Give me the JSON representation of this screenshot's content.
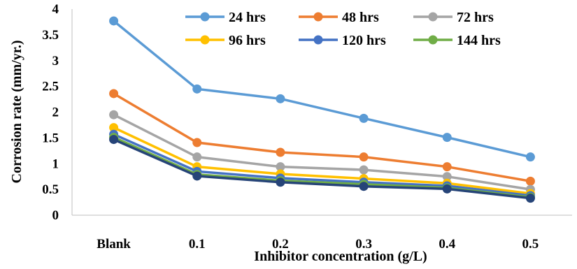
{
  "chart_data": {
    "type": "line",
    "title": "",
    "xlabel": "Inhibitor concentration (g/L)",
    "ylabel": "Corrosion rate (mm/yr.)",
    "categories": [
      "Blank",
      "0.1",
      "0.2",
      "0.3",
      "0.4",
      "0.5"
    ],
    "ylim": [
      0,
      4
    ],
    "yticks": [
      "0",
      "0.5",
      "1",
      "1.5",
      "2",
      "2.5",
      "3",
      "3.5",
      "4"
    ],
    "grid": false,
    "legend_position": "top-right",
    "series": [
      {
        "name": "24 hrs",
        "color": "#5B9BD5",
        "values": [
          3.77,
          2.45,
          2.26,
          1.88,
          1.51,
          1.13
        ]
      },
      {
        "name": "48 hrs",
        "color": "#ED7D31",
        "values": [
          2.36,
          1.41,
          1.22,
          1.13,
          0.94,
          0.66
        ]
      },
      {
        "name": "72 hrs",
        "color": "#A5A5A5",
        "values": [
          1.95,
          1.13,
          0.94,
          0.88,
          0.75,
          0.5
        ]
      },
      {
        "name": "96 hrs",
        "color": "#FFC000",
        "values": [
          1.7,
          0.94,
          0.8,
          0.71,
          0.62,
          0.42
        ]
      },
      {
        "name": "120 hrs",
        "color": "#4472C4",
        "values": [
          1.57,
          0.85,
          0.72,
          0.64,
          0.57,
          0.38
        ]
      },
      {
        "name": "144 hrs",
        "color": "#70AD47",
        "values": [
          1.51,
          0.79,
          0.67,
          0.6,
          0.53,
          0.35
        ]
      }
    ],
    "extra_series_dark": {
      "color": "#264478",
      "values": [
        1.47,
        0.76,
        0.64,
        0.56,
        0.51,
        0.33
      ]
    }
  }
}
